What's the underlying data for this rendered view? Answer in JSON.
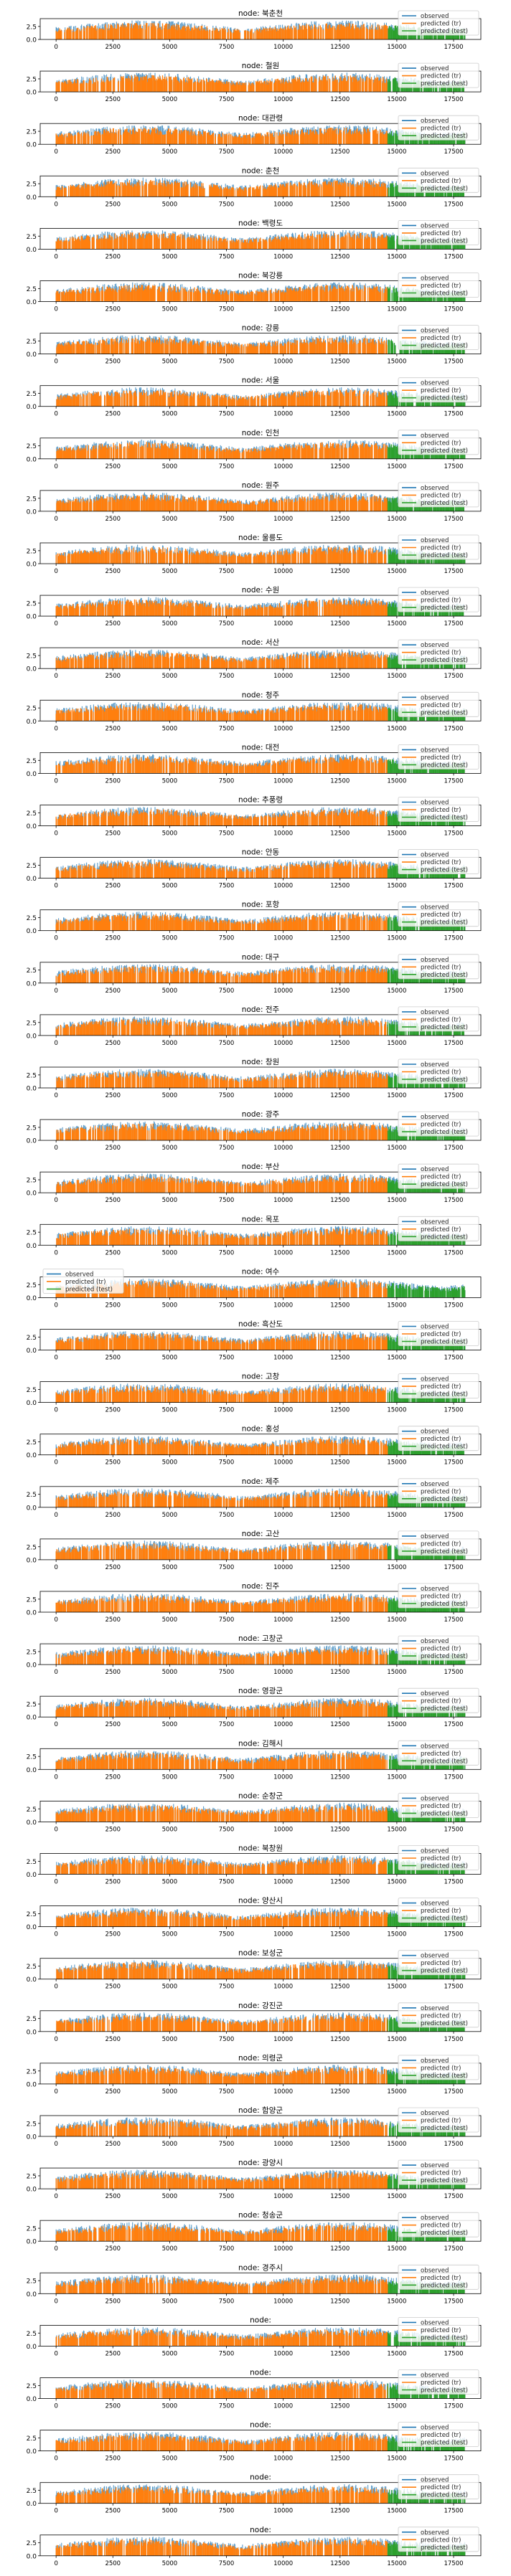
{
  "chart_data": {
    "type": "line",
    "panel_count": 49,
    "title_prefix": "node: ",
    "nodes": [
      "북춘천",
      "철원",
      "대관령",
      "춘천",
      "백령도",
      "북강릉",
      "강릉",
      "서울",
      "인천",
      "원주",
      "울릉도",
      "수원",
      "서산",
      "청주",
      "대전",
      "추풍령",
      "안동",
      "포항",
      "대구",
      "전주",
      "창원",
      "광주",
      "부산",
      "목포",
      "여수",
      "흑산도",
      "고창",
      "홍성",
      "제주",
      "고산",
      "진주",
      "고창군",
      "영광군",
      "김해시",
      "순창군",
      "북창원",
      "양산시",
      "보성군",
      "강진군",
      "의령군",
      "함양군",
      "광양시",
      "청송군",
      "경주시",
      "",
      "",
      "",
      "",
      ""
    ],
    "xlim": [
      -700,
      18700
    ],
    "ylim": [
      0,
      4
    ],
    "xticks": [
      0,
      2500,
      5000,
      7500,
      10000,
      12500,
      15000,
      17500
    ],
    "yticks": [
      0.0,
      2.5
    ],
    "ytick_labels": [
      "0.0",
      "2.5"
    ],
    "train_end": 14600,
    "test_end": 18000,
    "series": [
      {
        "name": "observed",
        "color": "#1f77b4",
        "style": "line"
      },
      {
        "name": "predicted (tr)",
        "color": "#ff7f0e",
        "style": "line"
      },
      {
        "name": "predicted (test)",
        "color": "#2ca02c",
        "style": "line"
      }
    ],
    "legend_location": "upper right",
    "legend_alt_panel": 24,
    "legend_alt_location": "upper left"
  }
}
